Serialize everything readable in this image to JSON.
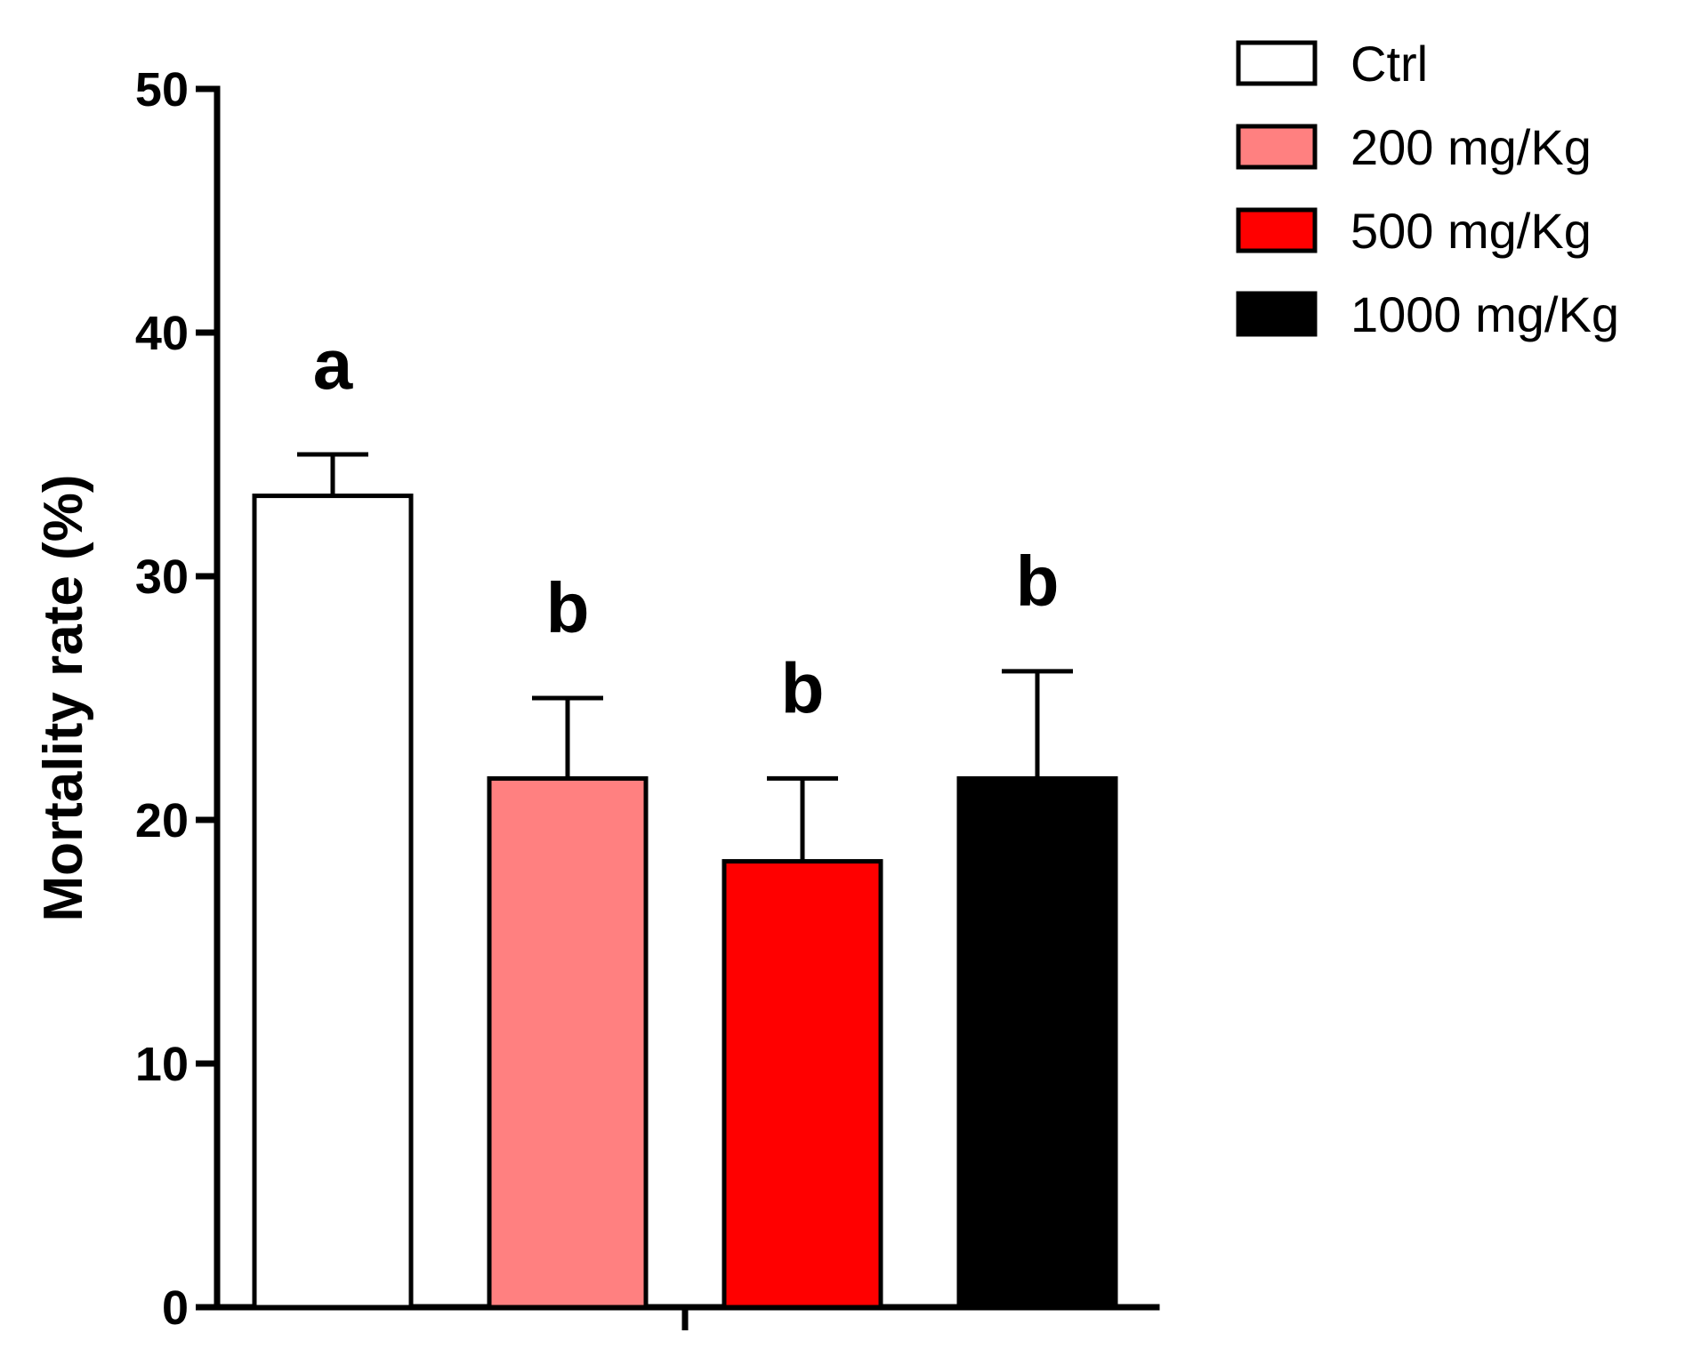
{
  "chart_data": {
    "type": "bar",
    "title": "",
    "xlabel": "",
    "ylabel": "Mortality rate (%)",
    "ylim": [
      0,
      50
    ],
    "yticks": [
      0,
      10,
      20,
      30,
      40,
      50
    ],
    "yticklabels": [
      "0",
      "10",
      "20",
      "30",
      "40",
      "50"
    ],
    "grid": false,
    "legend_position": "top-right",
    "series": [
      {
        "name": "Ctrl",
        "value": 33.3,
        "error": 1.7,
        "color": "#ffffff",
        "label": "a"
      },
      {
        "name": "200 mg/Kg",
        "value": 21.7,
        "error": 3.3,
        "color": "#ff8080",
        "label": "b"
      },
      {
        "name": "500 mg/Kg",
        "value": 18.3,
        "error": 3.4,
        "color": "#ff0000",
        "label": "b"
      },
      {
        "name": "1000 mg/Kg",
        "value": 21.7,
        "error": 4.4,
        "color": "#000000",
        "label": "b"
      }
    ]
  }
}
